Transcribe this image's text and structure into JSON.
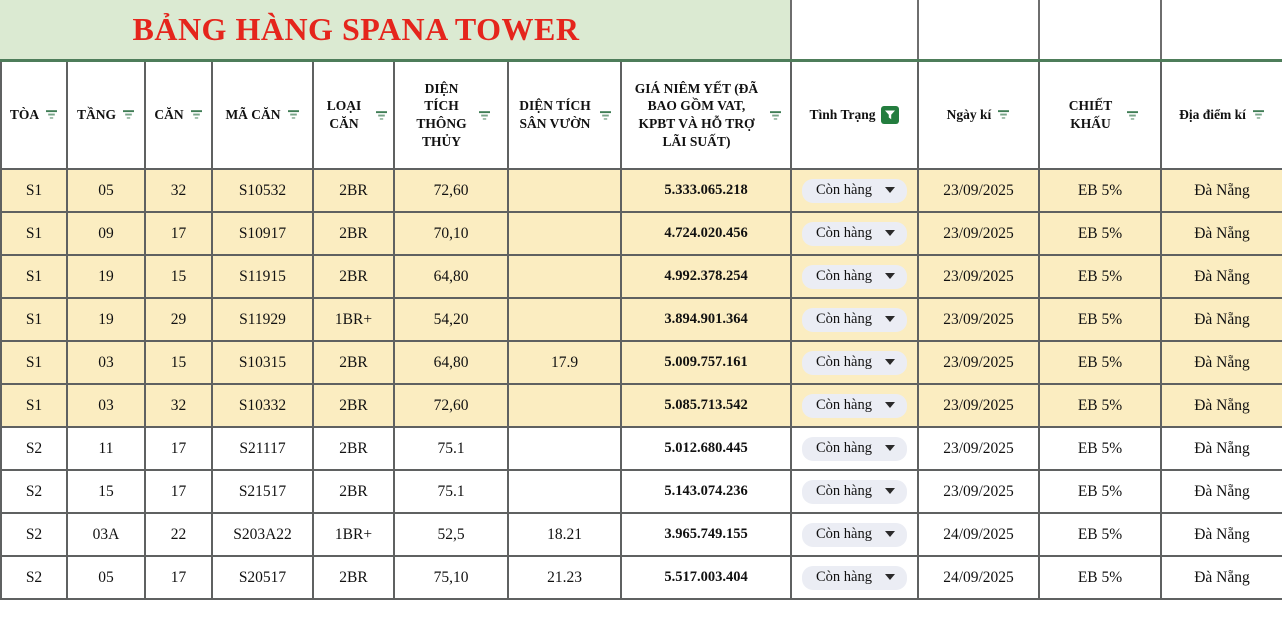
{
  "sheet": {
    "title": "BẢNG HÀNG SPANA TOWER"
  },
  "colors": {
    "title_red": "#e5251c",
    "band_green": "#dbead2",
    "divider_green": "#4e7d5a",
    "border_grey": "#5f6161",
    "row_highlight": "#fbedc1",
    "chip_bg": "#ebedf4",
    "filter_active_green": "#237d3e",
    "filter_lines_green": "#3f7d55"
  },
  "table": {
    "columns": [
      {
        "id": "toa",
        "label": "TÒA",
        "filter": "lines"
      },
      {
        "id": "tang",
        "label": "TẦNG",
        "filter": "lines"
      },
      {
        "id": "can",
        "label": "CĂN",
        "filter": "lines"
      },
      {
        "id": "ma-can",
        "label": "MÃ CĂN",
        "filter": "lines"
      },
      {
        "id": "loai-can",
        "label": "LOẠI CĂN",
        "filter": "lines"
      },
      {
        "id": "dien-tich-thong-thuy",
        "label": "DIỆN TÍCH THÔNG THỦY",
        "filter": "lines"
      },
      {
        "id": "dien-tich-san-vuon",
        "label": "DIỆN TÍCH SÂN VƯỜN",
        "filter": "lines"
      },
      {
        "id": "gia-niem-yet",
        "label": "GIÁ NIÊM YẾT (ĐÃ BAO GỒM VAT, KPBT VÀ HỖ TRỢ LÃI SUẤT)",
        "filter": "active_funnel"
      },
      {
        "id": "tinh-trang",
        "label": "Tình Trạng",
        "filter": "active"
      },
      {
        "id": "ngay-ki",
        "label": "Ngày kí",
        "filter": "lines"
      },
      {
        "id": "chiet-khau",
        "label": "CHIẾT KHẤU",
        "filter": "lines"
      },
      {
        "id": "dia-diem-ki",
        "label": "Địa điểm kí",
        "filter": "lines"
      }
    ],
    "rows": [
      {
        "toa": "S1",
        "tang": "05",
        "can": "32",
        "ma_can": "S10532",
        "loai_can": "2BR",
        "dt_thong_thuy": "72,60",
        "dt_san_vuon": "",
        "gia": "5.333.065.218",
        "tinh_trang": "Còn hàng",
        "ngay_ki": "23/09/2025",
        "chiet_khau": "EB 5%",
        "dia_diem_ki": "Đà Nẵng",
        "highlight": true
      },
      {
        "toa": "S1",
        "tang": "09",
        "can": "17",
        "ma_can": "S10917",
        "loai_can": "2BR",
        "dt_thong_thuy": "70,10",
        "dt_san_vuon": "",
        "gia": "4.724.020.456",
        "tinh_trang": "Còn hàng",
        "ngay_ki": "23/09/2025",
        "chiet_khau": "EB 5%",
        "dia_diem_ki": "Đà Nẵng",
        "highlight": true
      },
      {
        "toa": "S1",
        "tang": "19",
        "can": "15",
        "ma_can": "S11915",
        "loai_can": "2BR",
        "dt_thong_thuy": "64,80",
        "dt_san_vuon": "",
        "gia": "4.992.378.254",
        "tinh_trang": "Còn hàng",
        "ngay_ki": "23/09/2025",
        "chiet_khau": "EB 5%",
        "dia_diem_ki": "Đà Nẵng",
        "highlight": true
      },
      {
        "toa": "S1",
        "tang": "19",
        "can": "29",
        "ma_can": "S11929",
        "loai_can": "1BR+",
        "dt_thong_thuy": "54,20",
        "dt_san_vuon": "",
        "gia": "3.894.901.364",
        "tinh_trang": "Còn hàng",
        "ngay_ki": "23/09/2025",
        "chiet_khau": "EB 5%",
        "dia_diem_ki": "Đà Nẵng",
        "highlight": true
      },
      {
        "toa": "S1",
        "tang": "03",
        "can": "15",
        "ma_can": "S10315",
        "loai_can": "2BR",
        "dt_thong_thuy": "64,80",
        "dt_san_vuon": "17.9",
        "gia": "5.009.757.161",
        "tinh_trang": "Còn hàng",
        "ngay_ki": "23/09/2025",
        "chiet_khau": "EB 5%",
        "dia_diem_ki": "Đà Nẵng",
        "highlight": true
      },
      {
        "toa": "S1",
        "tang": "03",
        "can": "32",
        "ma_can": "S10332",
        "loai_can": "2BR",
        "dt_thong_thuy": "72,60",
        "dt_san_vuon": "",
        "gia": "5.085.713.542",
        "tinh_trang": "Còn hàng",
        "ngay_ki": "23/09/2025",
        "chiet_khau": "EB 5%",
        "dia_diem_ki": "Đà Nẵng",
        "highlight": true
      },
      {
        "toa": "S2",
        "tang": "11",
        "can": "17",
        "ma_can": "S21117",
        "loai_can": "2BR",
        "dt_thong_thuy": "75.1",
        "dt_san_vuon": "",
        "gia": "5.012.680.445",
        "tinh_trang": "Còn hàng",
        "ngay_ki": "23/09/2025",
        "chiet_khau": "EB 5%",
        "dia_diem_ki": "Đà Nẵng",
        "highlight": false
      },
      {
        "toa": "S2",
        "tang": "15",
        "can": "17",
        "ma_can": "S21517",
        "loai_can": "2BR",
        "dt_thong_thuy": "75.1",
        "dt_san_vuon": "",
        "gia": "5.143.074.236",
        "tinh_trang": "Còn hàng",
        "ngay_ki": "23/09/2025",
        "chiet_khau": "EB 5%",
        "dia_diem_ki": "Đà Nẵng",
        "highlight": false
      },
      {
        "toa": "S2",
        "tang": "03A",
        "can": "22",
        "ma_can": "S203A22",
        "loai_can": "1BR+",
        "dt_thong_thuy": "52,5",
        "dt_san_vuon": "18.21",
        "gia": "3.965.749.155",
        "tinh_trang": "Còn hàng",
        "ngay_ki": "24/09/2025",
        "chiet_khau": "EB 5%",
        "dia_diem_ki": "Đà Nẵng",
        "highlight": false
      },
      {
        "toa": "S2",
        "tang": "05",
        "can": "17",
        "ma_can": "S20517",
        "loai_can": "2BR",
        "dt_thong_thuy": "75,10",
        "dt_san_vuon": "21.23",
        "gia": "5.517.003.404",
        "tinh_trang": "Còn hàng",
        "ngay_ki": "24/09/2025",
        "chiet_khau": "EB 5%",
        "dia_diem_ki": "Đà Nẵng",
        "highlight": false
      }
    ]
  }
}
